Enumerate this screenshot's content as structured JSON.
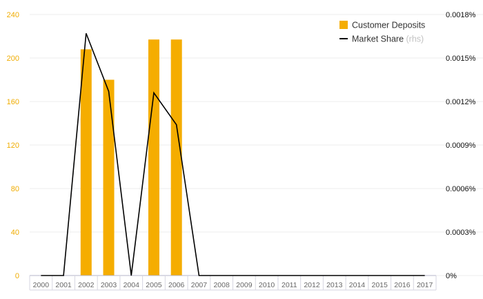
{
  "chart_data": {
    "type": "bar+line",
    "title": "",
    "xlabel": "",
    "ylabel": "",
    "categories": [
      "2000",
      "2001",
      "2002",
      "2003",
      "2004",
      "2005",
      "2006",
      "2007",
      "2008",
      "2009",
      "2010",
      "2011",
      "2012",
      "2013",
      "2014",
      "2015",
      "2016",
      "2017"
    ],
    "series": [
      {
        "name": "Customer Deposits",
        "type": "bar",
        "axis": "left",
        "color": "#f5ad00",
        "values": [
          0,
          0,
          208,
          180,
          0,
          217,
          217,
          0,
          0,
          0,
          0,
          0,
          0,
          0,
          0,
          0,
          0,
          0
        ]
      },
      {
        "name": "Market Share",
        "type": "line",
        "axis": "right",
        "color": "#000000",
        "values": [
          0,
          0,
          0.00167,
          0.00127,
          0,
          0.00126,
          0.00104,
          0,
          0,
          0,
          0,
          0,
          0,
          0,
          0,
          0,
          0,
          0
        ]
      }
    ],
    "y_left": {
      "ylim": [
        0,
        240
      ],
      "ticks": [
        "0",
        "40",
        "80",
        "120",
        "160",
        "200",
        "240"
      ],
      "color": "#f0ac00"
    },
    "y_right": {
      "ylim": [
        0,
        0.0018
      ],
      "ticks": [
        "0%",
        "0.0003%",
        "0.0006%",
        "0.0009%",
        "0.0012%",
        "0.0015%",
        "0.0018%"
      ]
    },
    "grid": true,
    "legend": {
      "position": "top-right",
      "items": [
        {
          "label": "Customer Deposits",
          "suffix": "",
          "symbol": "square",
          "color": "#f5ad00"
        },
        {
          "label": "Market Share",
          "suffix": "(rhs)",
          "symbol": "line",
          "color": "#000000"
        }
      ]
    }
  }
}
